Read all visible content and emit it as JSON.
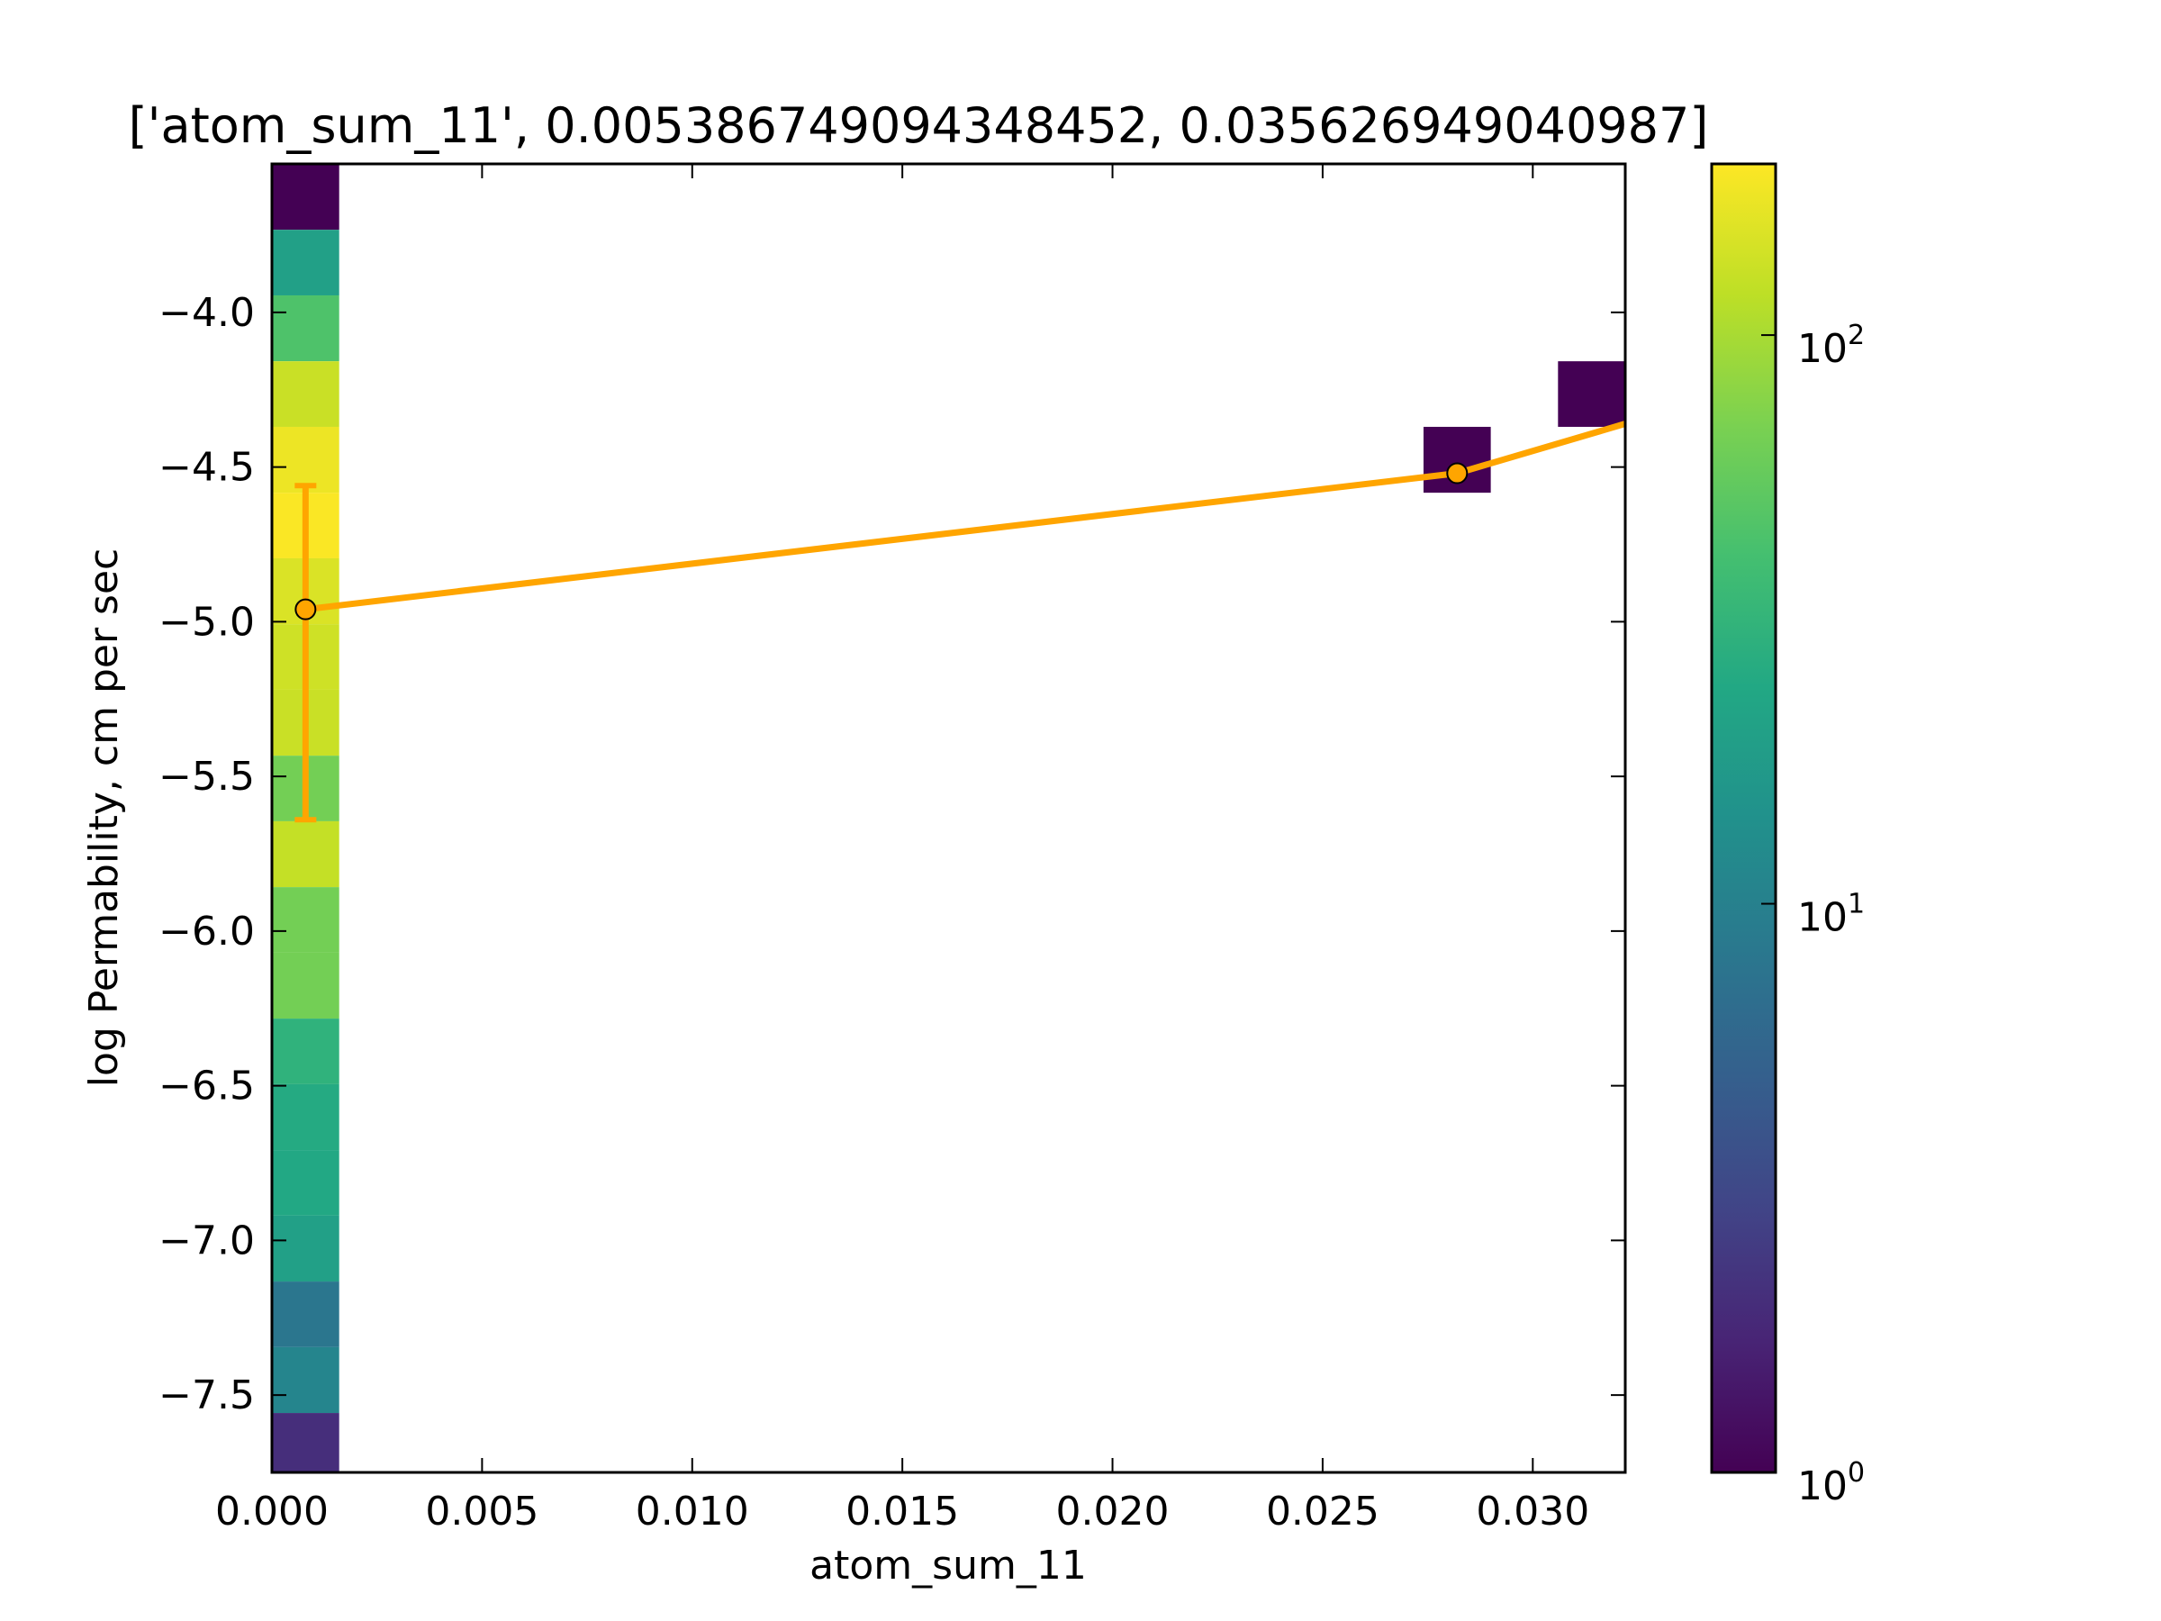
{
  "chart_data": {
    "type": "heatmap",
    "title": "['atom_sum_11', 0.005386749094348452, 0.035626949040987]",
    "xlabel": "atom_sum_11",
    "ylabel": "log Permability, cm per sec",
    "xlim": [
      0.0,
      0.0322
    ],
    "ylim": [
      -7.75,
      -3.52
    ],
    "x_ticks": [
      "0.000",
      "0.005",
      "0.010",
      "0.015",
      "0.020",
      "0.025",
      "0.030"
    ],
    "x_tick_values": [
      0.0,
      0.005,
      0.01,
      0.015,
      0.02,
      0.025,
      0.03
    ],
    "y_ticks": [
      "−4.0",
      "−4.5",
      "−5.0",
      "−5.5",
      "−6.0",
      "−6.5",
      "−7.0",
      "−7.5"
    ],
    "y_tick_values": [
      -4.0,
      -4.5,
      -5.0,
      -5.5,
      -6.0,
      -6.5,
      -7.0,
      -7.5
    ],
    "grid": false,
    "colormap": "viridis",
    "color_scale": "log",
    "colorbar": {
      "range": [
        1,
        200
      ],
      "ticks": [
        {
          "base": "10",
          "exp": "0",
          "value": 1
        },
        {
          "base": "10",
          "exp": "1",
          "value": 10
        },
        {
          "base": "10",
          "exp": "2",
          "value": 100
        }
      ]
    },
    "cells": [
      {
        "x0": 0.0,
        "x1": 0.0016,
        "y0": -3.733,
        "y1": -3.52,
        "count": 1
      },
      {
        "x0": 0.0,
        "x1": 0.0016,
        "y0": -3.945,
        "y1": -3.733,
        "count": 20
      },
      {
        "x0": 0.0,
        "x1": 0.0016,
        "y0": -4.158,
        "y1": -3.945,
        "count": 45
      },
      {
        "x0": 0.0,
        "x1": 0.0016,
        "y0": -4.37,
        "y1": -4.158,
        "count": 130
      },
      {
        "x0": 0.0,
        "x1": 0.0016,
        "y0": -4.583,
        "y1": -4.37,
        "count": 175
      },
      {
        "x0": 0.0,
        "x1": 0.0016,
        "y0": -4.795,
        "y1": -4.583,
        "count": 195
      },
      {
        "x0": 0.0,
        "x1": 0.0016,
        "y0": -5.008,
        "y1": -4.795,
        "count": 150
      },
      {
        "x0": 0.0,
        "x1": 0.0016,
        "y0": -5.22,
        "y1": -5.008,
        "count": 135
      },
      {
        "x0": 0.0,
        "x1": 0.0016,
        "y0": -5.433,
        "y1": -5.22,
        "count": 130
      },
      {
        "x0": 0.0,
        "x1": 0.0016,
        "y0": -5.645,
        "y1": -5.433,
        "count": 65
      },
      {
        "x0": 0.0,
        "x1": 0.0016,
        "y0": -5.858,
        "y1": -5.645,
        "count": 125
      },
      {
        "x0": 0.0,
        "x1": 0.0016,
        "y0": -6.07,
        "y1": -5.858,
        "count": 65
      },
      {
        "x0": 0.0,
        "x1": 0.0016,
        "y0": -6.283,
        "y1": -6.07,
        "count": 65
      },
      {
        "x0": 0.0,
        "x1": 0.0016,
        "y0": -6.495,
        "y1": -6.283,
        "count": 30
      },
      {
        "x0": 0.0,
        "x1": 0.0016,
        "y0": -6.708,
        "y1": -6.495,
        "count": 25
      },
      {
        "x0": 0.0,
        "x1": 0.0016,
        "y0": -6.92,
        "y1": -6.708,
        "count": 24
      },
      {
        "x0": 0.0,
        "x1": 0.0016,
        "y0": -7.133,
        "y1": -6.92,
        "count": 20
      },
      {
        "x0": 0.0,
        "x1": 0.0016,
        "y0": -7.345,
        "y1": -7.133,
        "count": 8
      },
      {
        "x0": 0.0,
        "x1": 0.0016,
        "y0": -7.558,
        "y1": -7.345,
        "count": 11
      },
      {
        "x0": 0.0,
        "x1": 0.0016,
        "y0": -7.77,
        "y1": -7.558,
        "count": 2
      },
      {
        "x0": 0.0274,
        "x1": 0.029,
        "y0": -4.583,
        "y1": -4.37,
        "count": 1
      },
      {
        "x0": 0.0306,
        "x1": 0.0322,
        "y0": -4.37,
        "y1": -4.158,
        "count": 1
      }
    ],
    "series": [
      {
        "x": [
          0.0008,
          0.0282,
          0.0322
        ],
        "y": [
          -4.96,
          -4.52,
          -4.36
        ],
        "color": "#ffa500"
      }
    ],
    "error_bars": [
      {
        "x": 0.0008,
        "y": -4.96,
        "lower": -5.64,
        "upper": -4.56
      }
    ]
  }
}
